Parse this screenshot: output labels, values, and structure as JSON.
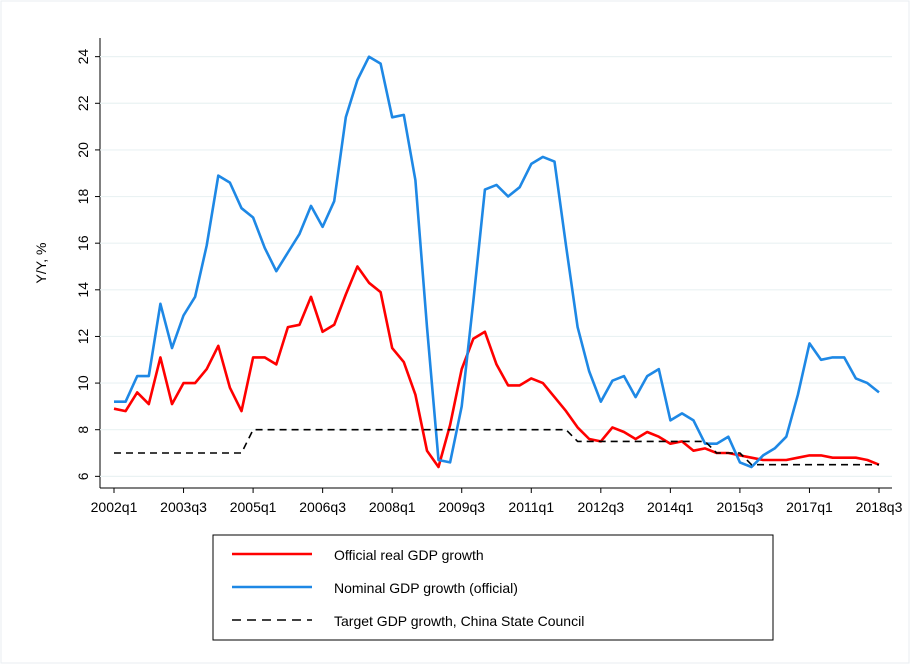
{
  "chart_data": {
    "type": "line",
    "y_label": "Y/Y, %",
    "categories": [
      "2002q1",
      null,
      null,
      null,
      null,
      null,
      "2003q3",
      null,
      null,
      null,
      null,
      null,
      "2005q1",
      null,
      null,
      null,
      null,
      null,
      "2006q3",
      null,
      null,
      null,
      null,
      null,
      "2008q1",
      null,
      null,
      null,
      null,
      null,
      "2009q3",
      null,
      null,
      null,
      null,
      null,
      "2011q1",
      null,
      null,
      null,
      null,
      null,
      "2012q3",
      null,
      null,
      null,
      null,
      null,
      "2014q1",
      null,
      null,
      null,
      null,
      null,
      "2015q3",
      null,
      null,
      null,
      null,
      null,
      "2017q1",
      null,
      null,
      null,
      null,
      null,
      "2018q3"
    ],
    "series": [
      {
        "name": "Official real GDP growth",
        "color": "#ff0000",
        "dashed": false,
        "values": [
          8.9,
          8.8,
          9.6,
          9.1,
          11.1,
          9.1,
          10.0,
          10.0,
          10.6,
          11.6,
          9.8,
          8.8,
          11.1,
          11.1,
          10.8,
          12.4,
          12.5,
          13.7,
          12.2,
          12.5,
          13.8,
          15.0,
          14.3,
          13.9,
          11.5,
          10.9,
          9.5,
          7.1,
          6.4,
          8.2,
          10.6,
          11.9,
          12.2,
          10.8,
          9.9,
          9.9,
          10.2,
          10.0,
          9.4,
          8.8,
          8.1,
          7.6,
          7.5,
          8.1,
          7.9,
          7.6,
          7.9,
          7.7,
          7.4,
          7.5,
          7.1,
          7.2,
          7.0,
          7.0,
          6.9,
          6.8,
          6.7,
          6.7,
          6.7,
          6.8,
          6.9,
          6.9,
          6.8,
          6.8,
          6.8,
          6.7,
          6.5
        ]
      },
      {
        "name": "Nominal GDP growth (official)",
        "color": "#1e88e5",
        "dashed": false,
        "values": [
          9.2,
          9.2,
          10.3,
          10.3,
          13.4,
          11.5,
          12.9,
          13.7,
          15.9,
          18.9,
          18.6,
          17.5,
          17.1,
          15.8,
          14.8,
          15.6,
          16.4,
          17.6,
          16.7,
          17.8,
          21.4,
          23.0,
          24.0,
          23.7,
          21.4,
          21.5,
          18.7,
          12.4,
          6.7,
          6.6,
          9.0,
          13.5,
          18.3,
          18.5,
          18.0,
          18.4,
          19.4,
          19.7,
          19.5,
          15.9,
          12.4,
          10.5,
          9.2,
          10.1,
          10.3,
          9.4,
          10.3,
          10.6,
          8.4,
          8.7,
          8.4,
          7.4,
          7.4,
          7.7,
          6.6,
          6.4,
          6.9,
          7.2,
          7.7,
          9.5,
          11.7,
          11.0,
          11.1,
          11.1,
          10.2,
          10.0,
          9.6
        ]
      },
      {
        "name": "Target GDP growth, China State Council",
        "color": "#000000",
        "dashed": true,
        "values": [
          7,
          7,
          7,
          7,
          7,
          7,
          7,
          7,
          7,
          7,
          7,
          7,
          8,
          8,
          8,
          8,
          8,
          8,
          8,
          8,
          8,
          8,
          8,
          8,
          8,
          8,
          8,
          8,
          8,
          8,
          8,
          8,
          8,
          8,
          8,
          8,
          8,
          8,
          8,
          8,
          7.5,
          7.5,
          7.5,
          7.5,
          7.5,
          7.5,
          7.5,
          7.5,
          7.5,
          7.5,
          7.5,
          7.5,
          7,
          7,
          7,
          6.5,
          6.5,
          6.5,
          6.5,
          6.5,
          6.5,
          6.5,
          6.5,
          6.5,
          6.5,
          6.5,
          6.5
        ]
      }
    ],
    "ylim": [
      5.5,
      24.8
    ],
    "yticks": [
      6,
      8,
      10,
      12,
      14,
      16,
      18,
      20,
      22,
      24
    ],
    "grid": true
  }
}
